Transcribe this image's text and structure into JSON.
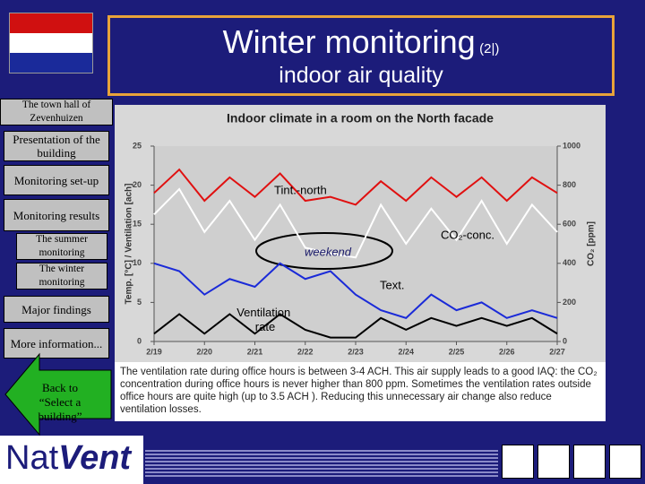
{
  "header": {
    "title": "Winter monitoring",
    "title_suffix": "(2|)",
    "subtitle": "indoor air quality"
  },
  "sidebar": {
    "items": [
      "The town hall of Zevenhuizen",
      "Presentation of the building",
      "Monitoring set-up",
      "Monitoring results",
      "The summer monitoring",
      "The winter monitoring",
      "Major findings",
      "More information..."
    ],
    "back": "Back to “Select a building”"
  },
  "logo": {
    "part1": "Nat",
    "part2": "Vent"
  },
  "caption": "The ventilation rate during office hours is between 3-4 ACH. This air supply leads to a good IAQ: the CO₂ concentration during office hours is never higher than 800 ppm. Sometimes the ventilation rates outside office hours are quite high (up to 3.5 ACH ). Reducing this unnecessary air change also reduce ventilation losses.",
  "chart_data": {
    "type": "line",
    "title": "Indoor climate in a room on the North facade",
    "y_label": "Temp. [°C] / Ventilation [ach]",
    "y2_label": "CO₂ [ppm]",
    "x": [
      0,
      0.5,
      1,
      1.5,
      2,
      2.5,
      3,
      3.5,
      4,
      4.5,
      5,
      5.5,
      6,
      6.5,
      7,
      7.5,
      8
    ],
    "xlim": [
      0,
      8
    ],
    "xticks": [
      {
        "value": 0,
        "label": "2/19"
      },
      {
        "value": 1,
        "label": "2/20"
      },
      {
        "value": 2,
        "label": "2/21"
      },
      {
        "value": 3,
        "label": "2/22"
      },
      {
        "value": 4,
        "label": "2/23"
      },
      {
        "value": 5,
        "label": "2/24"
      },
      {
        "value": 6,
        "label": "2/25"
      },
      {
        "value": 7,
        "label": "2/26"
      },
      {
        "value": 8,
        "label": "2/27"
      }
    ],
    "ylim": [
      0,
      25
    ],
    "yticks": [
      0,
      5,
      10,
      15,
      20,
      25
    ],
    "y2lim": [
      0,
      1000
    ],
    "y2ticks": [
      0,
      200,
      400,
      600,
      800,
      1000
    ],
    "series": [
      {
        "color": "#e01010",
        "values": [
          19,
          22,
          18,
          21,
          18.5,
          21.5,
          18,
          18.5,
          17.5,
          20.5,
          18,
          21,
          18.5,
          21,
          18,
          21,
          19
        ]
      },
      {
        "color": "#ffffff",
        "axis": "y2",
        "values": [
          650,
          780,
          560,
          720,
          520,
          700,
          480,
          450,
          430,
          700,
          500,
          680,
          520,
          720,
          500,
          700,
          560
        ]
      },
      {
        "color": "#1a2ad8",
        "values": [
          10,
          9,
          6,
          8,
          7,
          10,
          8,
          9,
          6,
          4,
          3,
          6,
          4,
          5,
          3,
          4,
          3
        ]
      },
      {
        "color": "#000000",
        "values": [
          1,
          3.5,
          1,
          3.5,
          1,
          3.5,
          1.5,
          0.5,
          0.5,
          3,
          1.5,
          3,
          2,
          3,
          2,
          3,
          1
        ]
      }
    ],
    "annotations": [
      "Tint.-north",
      "CO₂-conc.",
      "weekend",
      "Text.",
      "Ventilation rate"
    ]
  }
}
